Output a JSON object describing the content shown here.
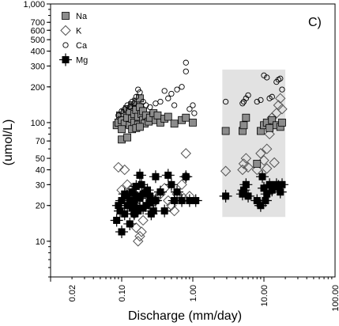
{
  "chart_data": {
    "type": "scatter",
    "panel_label": "C)",
    "xlabel": "Discharge (mm/day)",
    "ylabel": "(umol/L)",
    "x_scale": "log",
    "y_scale": "log",
    "xlim": [
      0.01,
      100
    ],
    "ylim": [
      5,
      1000
    ],
    "x_ticks": [
      {
        "value": 0.02,
        "label": "0.02"
      },
      {
        "value": 0.1,
        "label": "0.10"
      },
      {
        "value": 1,
        "label": "1.00"
      },
      {
        "value": 10,
        "label": "10.00"
      },
      {
        "value": 100,
        "label": "100.00"
      }
    ],
    "y_ticks": [
      {
        "value": 10,
        "label": "10"
      },
      {
        "value": 20,
        "label": "20"
      },
      {
        "value": 30,
        "label": "30"
      },
      {
        "value": 40,
        "label": "40"
      },
      {
        "value": 50,
        "label": "50"
      },
      {
        "value": 70,
        "label": "70"
      },
      {
        "value": 100,
        "label": "100"
      },
      {
        "value": 200,
        "label": "200"
      },
      {
        "value": 300,
        "label": "300"
      },
      {
        "value": 400,
        "label": "400"
      },
      {
        "value": 500,
        "label": "500"
      },
      {
        "value": 600,
        "label": "600"
      },
      {
        "value": 700,
        "label": "700"
      },
      {
        "value": 1000,
        "label": "1,000"
      }
    ],
    "legend_placement": "top-left",
    "shaded_region": {
      "x": [
        2.6,
        20
      ],
      "y": [
        16,
        280
      ],
      "color": "#e2e2e2"
    },
    "series": [
      {
        "name": "Na",
        "marker": "square",
        "fill": "#8c8c8c",
        "points": [
          [
            0.085,
            95
          ],
          [
            0.09,
            100
          ],
          [
            0.095,
            115
          ],
          [
            0.1,
            72
          ],
          [
            0.1,
            105
          ],
          [
            0.11,
            120
          ],
          [
            0.11,
            98
          ],
          [
            0.12,
            130
          ],
          [
            0.12,
            110
          ],
          [
            0.13,
            95
          ],
          [
            0.13,
            125
          ],
          [
            0.14,
            108
          ],
          [
            0.14,
            140
          ],
          [
            0.15,
            118
          ],
          [
            0.15,
            100
          ],
          [
            0.16,
            150
          ],
          [
            0.16,
            128
          ],
          [
            0.17,
            112
          ],
          [
            0.17,
            96
          ],
          [
            0.18,
            160
          ],
          [
            0.18,
            135
          ],
          [
            0.19,
            118
          ],
          [
            0.2,
            105
          ],
          [
            0.2,
            125
          ],
          [
            0.21,
            98
          ],
          [
            0.22,
            115
          ],
          [
            0.24,
            102
          ],
          [
            0.25,
            110
          ],
          [
            0.28,
            120
          ],
          [
            0.3,
            105
          ],
          [
            0.32,
            115
          ],
          [
            0.35,
            100
          ],
          [
            0.4,
            108
          ],
          [
            0.45,
            112
          ],
          [
            0.55,
            98
          ],
          [
            0.7,
            105
          ],
          [
            0.8,
            110
          ],
          [
            0.12,
            75
          ],
          [
            0.14,
            88
          ],
          [
            0.16,
            90
          ],
          [
            0.18,
            92
          ],
          [
            0.1,
            88
          ],
          [
            1.0,
            100
          ],
          [
            2.9,
            85
          ],
          [
            5.0,
            85
          ],
          [
            5.2,
            95
          ],
          [
            5.6,
            110
          ],
          [
            9.0,
            85
          ],
          [
            10.0,
            95
          ],
          [
            11.0,
            100
          ],
          [
            12.0,
            90
          ],
          [
            13.0,
            105
          ],
          [
            15.0,
            95
          ],
          [
            17.0,
            92
          ],
          [
            18.0,
            100
          ],
          [
            8.0,
            45
          ]
        ]
      },
      {
        "name": "K",
        "marker": "diamond",
        "fill": "none",
        "points": [
          [
            0.09,
            42
          ],
          [
            0.1,
            27
          ],
          [
            0.11,
            40
          ],
          [
            0.12,
            30
          ],
          [
            0.13,
            25
          ],
          [
            0.14,
            28
          ],
          [
            0.15,
            17
          ],
          [
            0.16,
            20
          ],
          [
            0.16,
            13
          ],
          [
            0.17,
            10
          ],
          [
            0.18,
            11
          ],
          [
            0.19,
            12
          ],
          [
            0.2,
            15
          ],
          [
            0.22,
            26
          ],
          [
            0.25,
            20
          ],
          [
            0.3,
            22
          ],
          [
            0.35,
            25
          ],
          [
            0.4,
            28
          ],
          [
            0.45,
            22
          ],
          [
            0.5,
            20
          ],
          [
            0.55,
            18
          ],
          [
            0.6,
            25
          ],
          [
            0.7,
            30
          ],
          [
            0.8,
            35
          ],
          [
            0.8,
            55
          ],
          [
            0.75,
            23
          ],
          [
            0.9,
            24
          ],
          [
            2.9,
            39
          ],
          [
            5.0,
            40
          ],
          [
            5.2,
            45
          ],
          [
            5.6,
            50
          ],
          [
            6.0,
            42
          ],
          [
            8.0,
            40
          ],
          [
            9.0,
            55
          ],
          [
            10.0,
            48
          ],
          [
            11.0,
            60
          ],
          [
            12.0,
            80
          ],
          [
            13.0,
            110
          ],
          [
            15.0,
            120
          ],
          [
            16.0,
            140
          ],
          [
            17.0,
            160
          ],
          [
            18.0,
            130
          ],
          [
            11.0,
            41
          ],
          [
            14.0,
            46
          ]
        ]
      },
      {
        "name": "Ca",
        "marker": "circle",
        "fill": "none",
        "points": [
          [
            0.09,
            115
          ],
          [
            0.1,
            125
          ],
          [
            0.11,
            130
          ],
          [
            0.12,
            140
          ],
          [
            0.13,
            135
          ],
          [
            0.14,
            150
          ],
          [
            0.15,
            145
          ],
          [
            0.16,
            165
          ],
          [
            0.17,
            190
          ],
          [
            0.18,
            180
          ],
          [
            0.2,
            150
          ],
          [
            0.22,
            140
          ],
          [
            0.25,
            135
          ],
          [
            0.3,
            145
          ],
          [
            0.35,
            150
          ],
          [
            0.4,
            185
          ],
          [
            0.45,
            160
          ],
          [
            0.5,
            175
          ],
          [
            0.55,
            140
          ],
          [
            0.6,
            190
          ],
          [
            0.7,
            200
          ],
          [
            0.8,
            320
          ],
          [
            0.8,
            270
          ],
          [
            0.9,
            130
          ],
          [
            1.0,
            140
          ],
          [
            1.05,
            120
          ],
          [
            2.9,
            150
          ],
          [
            5.0,
            145
          ],
          [
            5.2,
            150
          ],
          [
            5.6,
            160
          ],
          [
            6.0,
            170
          ],
          [
            8.0,
            150
          ],
          [
            9.0,
            155
          ],
          [
            10.0,
            250
          ],
          [
            11.0,
            240
          ],
          [
            12.0,
            160
          ],
          [
            13.0,
            165
          ],
          [
            15.0,
            220
          ],
          [
            16.0,
            230
          ],
          [
            17.0,
            235
          ],
          [
            18.0,
            190
          ]
        ]
      },
      {
        "name": "Mg",
        "marker": "filled-square-cross",
        "fill": "#000000",
        "points": [
          [
            0.085,
            15
          ],
          [
            0.09,
            20
          ],
          [
            0.095,
            18
          ],
          [
            0.1,
            12
          ],
          [
            0.1,
            22
          ],
          [
            0.11,
            25
          ],
          [
            0.11,
            17
          ],
          [
            0.12,
            20
          ],
          [
            0.12,
            24
          ],
          [
            0.13,
            14
          ],
          [
            0.13,
            22
          ],
          [
            0.14,
            19
          ],
          [
            0.14,
            26
          ],
          [
            0.15,
            21
          ],
          [
            0.15,
            17
          ],
          [
            0.16,
            24
          ],
          [
            0.16,
            19
          ],
          [
            0.17,
            18
          ],
          [
            0.18,
            36
          ],
          [
            0.19,
            30
          ],
          [
            0.2,
            25
          ],
          [
            0.22,
            20
          ],
          [
            0.25,
            24
          ],
          [
            0.28,
            18
          ],
          [
            0.3,
            35
          ],
          [
            0.3,
            22
          ],
          [
            0.35,
            26
          ],
          [
            0.4,
            18
          ],
          [
            0.45,
            36
          ],
          [
            0.5,
            30
          ],
          [
            0.55,
            22
          ],
          [
            0.6,
            26
          ],
          [
            0.7,
            22
          ],
          [
            0.8,
            35
          ],
          [
            0.9,
            22
          ],
          [
            1.1,
            22
          ],
          [
            0.2,
            19
          ],
          [
            0.25,
            21
          ],
          [
            0.18,
            23
          ],
          [
            0.16,
            29
          ],
          [
            0.23,
            27
          ],
          [
            0.26,
            17
          ],
          [
            2.9,
            24
          ],
          [
            5.0,
            25
          ],
          [
            5.2,
            27
          ],
          [
            5.6,
            30
          ],
          [
            6.0,
            24
          ],
          [
            8.0,
            22
          ],
          [
            9.0,
            20
          ],
          [
            10.0,
            28
          ],
          [
            11.0,
            25
          ],
          [
            12.0,
            30
          ],
          [
            13.0,
            27
          ],
          [
            15.0,
            30
          ],
          [
            16.0,
            29
          ],
          [
            17.0,
            26
          ],
          [
            18.0,
            30
          ],
          [
            9.5,
            35
          ],
          [
            10.5,
            22
          ]
        ]
      }
    ]
  }
}
